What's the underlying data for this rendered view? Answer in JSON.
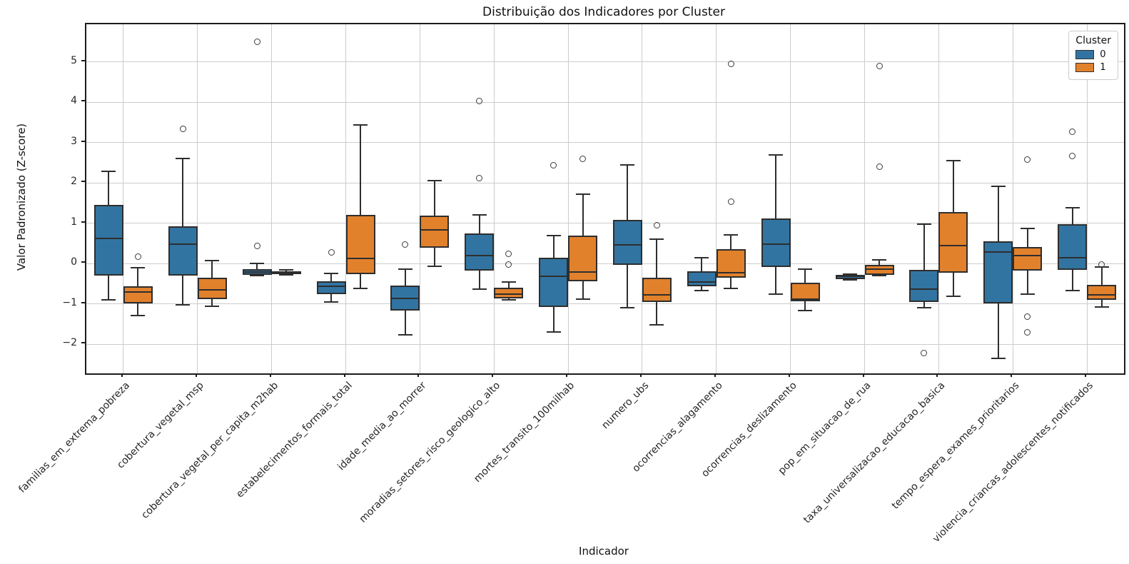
{
  "title": "Distribuição dos Indicadores por Cluster",
  "legend": {
    "title": "Cluster",
    "entries": [
      {
        "label": "0",
        "color": "#3274a1"
      },
      {
        "label": "1",
        "color": "#e1812c"
      }
    ]
  },
  "colors": {
    "cluster0": "#3274a1",
    "cluster1": "#e1812c",
    "box_edge": "#2e2e2e",
    "grid": "#cccccc",
    "spine": "#1c1c1c"
  },
  "chart_data": {
    "type": "boxplot",
    "title": "Distribuição dos Indicadores por Cluster",
    "xlabel": "Indicador",
    "ylabel": "Valor Padronizado (Z-score)",
    "ylim": [
      -2.72,
      5.93
    ],
    "yticks": [
      -2,
      -1,
      0,
      1,
      2,
      3,
      4,
      5
    ],
    "grid": true,
    "legend_position": "upper right",
    "categories": [
      "familias_em_extrema_pobreza",
      "cobertura_vegetal_msp",
      "cobertura_vegetal_per_capita_m2hab",
      "estabelecimentos_formais_total",
      "idade_media_ao_morrer",
      "moradias_setores_risco_geologico_alto",
      "mortes_transito_100milhab",
      "numero_ubs",
      "ocorrencias_alagamento",
      "ocorrencias_deslizamento",
      "pop_em_situacao_de_rua",
      "taxa_universalizacao_educacao_basica",
      "tempo_espera_exames_prioritarios",
      "violencia_criancas_adolescentes_notificados"
    ],
    "series": [
      {
        "name": "0",
        "color": "#3274a1",
        "boxes": [
          {
            "whislo": -0.9,
            "q1": -0.29,
            "med": 0.62,
            "q3": 1.46,
            "whishi": 2.28,
            "fliers": []
          },
          {
            "whislo": -1.02,
            "q1": -0.29,
            "med": 0.49,
            "q3": 0.92,
            "whishi": 2.6,
            "fliers": [
              3.34
            ]
          },
          {
            "whislo": -0.3,
            "q1": -0.28,
            "med": -0.2,
            "q3": -0.14,
            "whishi": 0.0,
            "fliers": [
              0.44,
              5.5
            ]
          },
          {
            "whislo": -0.95,
            "q1": -0.76,
            "med": -0.57,
            "q3": -0.44,
            "whishi": -0.25,
            "fliers": [
              0.28
            ]
          },
          {
            "whislo": -1.76,
            "q1": -1.17,
            "med": -0.86,
            "q3": -0.55,
            "whishi": -0.14,
            "fliers": [
              0.48
            ]
          },
          {
            "whislo": -0.63,
            "q1": -0.17,
            "med": 0.19,
            "q3": 0.74,
            "whishi": 1.21,
            "fliers": [
              4.02,
              2.11
            ]
          },
          {
            "whislo": -1.69,
            "q1": -1.08,
            "med": -0.31,
            "q3": 0.15,
            "whishi": 0.7,
            "fliers": [
              2.43
            ]
          },
          {
            "whislo": -1.1,
            "q1": -0.04,
            "med": 0.46,
            "q3": 1.08,
            "whishi": 2.45,
            "fliers": []
          },
          {
            "whislo": -0.66,
            "q1": -0.56,
            "med": -0.45,
            "q3": -0.19,
            "whishi": 0.14,
            "fliers": []
          },
          {
            "whislo": -0.76,
            "q1": -0.08,
            "med": 0.48,
            "q3": 1.12,
            "whishi": 2.69,
            "fliers": []
          },
          {
            "whislo": -0.4,
            "q1": -0.38,
            "med": -0.32,
            "q3": -0.28,
            "whishi": -0.26,
            "fliers": []
          },
          {
            "whislo": -1.1,
            "q1": -0.95,
            "med": -0.63,
            "q3": -0.16,
            "whishi": 0.98,
            "fliers": [
              -2.22
            ]
          },
          {
            "whislo": -2.35,
            "q1": -0.98,
            "med": 0.28,
            "q3": 0.55,
            "whishi": 1.92,
            "fliers": []
          },
          {
            "whislo": -0.66,
            "q1": -0.16,
            "med": 0.15,
            "q3": 0.97,
            "whishi": 1.38,
            "fliers": [
              3.27,
              2.67
            ]
          }
        ]
      },
      {
        "name": "1",
        "color": "#e1812c",
        "boxes": [
          {
            "whislo": -1.28,
            "q1": -0.99,
            "med": -0.71,
            "q3": -0.57,
            "whishi": -0.11,
            "fliers": [
              0.17
            ]
          },
          {
            "whislo": -1.06,
            "q1": -0.88,
            "med": -0.65,
            "q3": -0.35,
            "whishi": 0.07,
            "fliers": []
          },
          {
            "whislo": -0.28,
            "q1": -0.26,
            "med": -0.22,
            "q3": -0.19,
            "whishi": -0.15,
            "fliers": []
          },
          {
            "whislo": -0.61,
            "q1": -0.26,
            "med": 0.12,
            "q3": 1.21,
            "whishi": 3.43,
            "fliers": []
          },
          {
            "whislo": -0.07,
            "q1": 0.4,
            "med": 0.83,
            "q3": 1.19,
            "whishi": 2.05,
            "fliers": []
          },
          {
            "whislo": -0.9,
            "q1": -0.86,
            "med": -0.75,
            "q3": -0.6,
            "whishi": -0.46,
            "fliers": [
              0.25,
              -0.02
            ]
          },
          {
            "whislo": -0.88,
            "q1": -0.44,
            "med": -0.2,
            "q3": 0.7,
            "whishi": 1.72,
            "fliers": [
              2.6
            ]
          },
          {
            "whislo": -1.52,
            "q1": -0.95,
            "med": -0.77,
            "q3": -0.35,
            "whishi": 0.6,
            "fliers": [
              0.95
            ]
          },
          {
            "whislo": -0.61,
            "q1": -0.35,
            "med": -0.22,
            "q3": 0.36,
            "whishi": 0.72,
            "fliers": [
              1.53,
              4.95
            ]
          },
          {
            "whislo": -1.17,
            "q1": -0.93,
            "med": -0.88,
            "q3": -0.48,
            "whishi": -0.13,
            "fliers": []
          },
          {
            "whislo": -0.3,
            "q1": -0.28,
            "med": -0.14,
            "q3": -0.04,
            "whishi": 0.09,
            "fliers": [
              2.4,
              4.9
            ]
          },
          {
            "whislo": -0.81,
            "q1": -0.22,
            "med": 0.45,
            "q3": 1.28,
            "whishi": 2.55,
            "fliers": []
          },
          {
            "whislo": -0.76,
            "q1": -0.17,
            "med": 0.2,
            "q3": 0.41,
            "whishi": 0.87,
            "fliers": [
              2.58,
              -1.32,
              -1.71
            ]
          },
          {
            "whislo": -1.08,
            "q1": -0.89,
            "med": -0.78,
            "q3": -0.52,
            "whishi": -0.08,
            "fliers": [
              -0.02
            ]
          }
        ]
      }
    ]
  }
}
